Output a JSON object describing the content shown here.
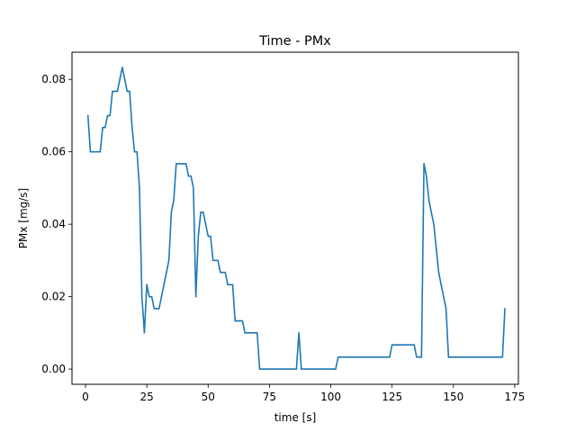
{
  "chart_data": {
    "type": "line",
    "title": "Time - PMx",
    "xlabel": "time [s]",
    "ylabel": "PMx [mg/s]",
    "xlim": [
      -5.5,
      176.5
    ],
    "ylim": [
      -0.0042,
      0.0875
    ],
    "xticks": [
      0,
      25,
      50,
      75,
      100,
      125,
      150,
      175
    ],
    "yticks": [
      0.0,
      0.02,
      0.04,
      0.06,
      0.08
    ],
    "x_tick_labels": [
      "0",
      "25",
      "50",
      "75",
      "100",
      "125",
      "150",
      "175"
    ],
    "y_tick_labels": [
      "0.00",
      "0.02",
      "0.04",
      "0.06",
      "0.08"
    ],
    "grid": false,
    "series": [
      {
        "color": "#1f77b4",
        "x": [
          1,
          2,
          6,
          7,
          8,
          9,
          10,
          11,
          13,
          15,
          17,
          18,
          19,
          20,
          21,
          22,
          23,
          24,
          25,
          26,
          27,
          28,
          29,
          30,
          31,
          32,
          33,
          34,
          35,
          36,
          37,
          38,
          39,
          40,
          41,
          42,
          43,
          44,
          45,
          46,
          47,
          48,
          49,
          50,
          51,
          52,
          53,
          54,
          55,
          56,
          57,
          58,
          59,
          60,
          61,
          62,
          63,
          64,
          65,
          66,
          67,
          70,
          71,
          86,
          87,
          88,
          101,
          102,
          103,
          124,
          125,
          134,
          135,
          137,
          138,
          139,
          140,
          141,
          142,
          143,
          144,
          145,
          146,
          147,
          148,
          169,
          170,
          171
        ],
        "values": [
          0.07,
          0.06,
          0.06,
          0.0667,
          0.0667,
          0.07,
          0.07,
          0.0767,
          0.0767,
          0.0833,
          0.0767,
          0.0767,
          0.0667,
          0.06,
          0.06,
          0.05,
          0.02,
          0.01,
          0.0233,
          0.02,
          0.02,
          0.0167,
          0.0167,
          0.0167,
          0.02,
          0.0233,
          0.0267,
          0.03,
          0.0433,
          0.0467,
          0.0567,
          0.0567,
          0.0567,
          0.0567,
          0.0567,
          0.0533,
          0.0533,
          0.05,
          0.02,
          0.0367,
          0.0433,
          0.0433,
          0.04,
          0.0367,
          0.0367,
          0.03,
          0.03,
          0.03,
          0.0267,
          0.0267,
          0.0267,
          0.0233,
          0.0233,
          0.0233,
          0.0133,
          0.0133,
          0.0133,
          0.0133,
          0.01,
          0.01,
          0.01,
          0.01,
          0.0,
          0.0,
          0.01,
          0.0,
          0.0,
          0.0,
          0.0033,
          0.0033,
          0.0067,
          0.0067,
          0.0033,
          0.0033,
          0.0567,
          0.0533,
          0.0467,
          0.0433,
          0.04,
          0.0333,
          0.0267,
          0.0233,
          0.02,
          0.0167,
          0.0033,
          0.0033,
          0.0033,
          0.0167
        ]
      }
    ]
  }
}
